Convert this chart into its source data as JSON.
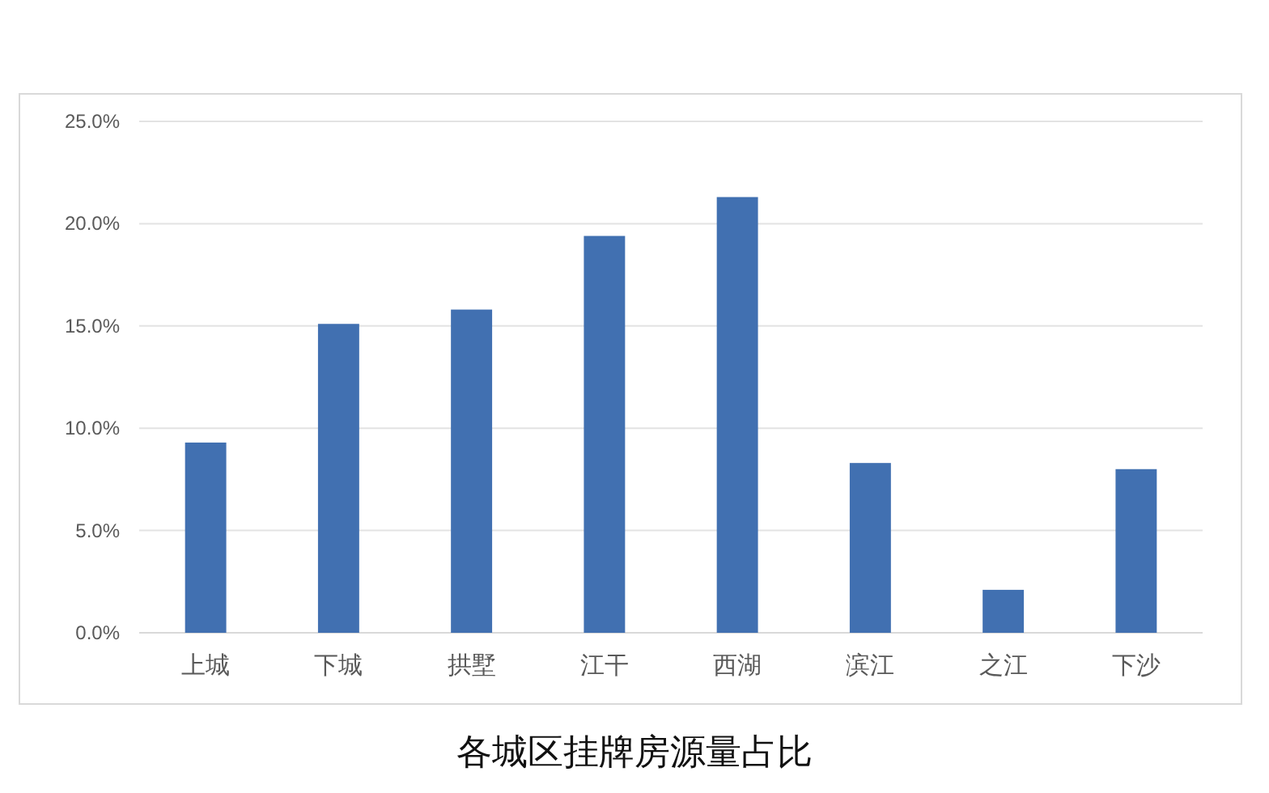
{
  "chart_data": {
    "type": "bar",
    "title": "各城区挂牌房源量占比",
    "categories": [
      "上城",
      "下城",
      "拱墅",
      "江干",
      "西湖",
      "滨江",
      "之江",
      "下沙"
    ],
    "values": [
      9.3,
      15.1,
      15.8,
      19.4,
      21.3,
      8.3,
      2.1,
      8.0
    ],
    "color": "#4170b1",
    "ylim": [
      0,
      25
    ],
    "yticks": [
      {
        "value": 0,
        "label": "0.0%"
      },
      {
        "value": 5,
        "label": "5.0%"
      },
      {
        "value": 10,
        "label": "10.0%"
      },
      {
        "value": 15,
        "label": "15.0%"
      },
      {
        "value": 20,
        "label": "20.0%"
      },
      {
        "value": 25,
        "label": "25.0%"
      }
    ],
    "grid": "y"
  }
}
